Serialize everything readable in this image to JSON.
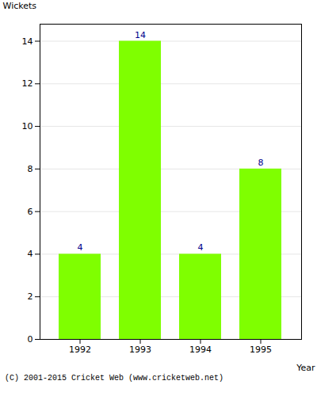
{
  "chart_data": {
    "type": "bar",
    "categories": [
      "1992",
      "1993",
      "1994",
      "1995"
    ],
    "values": [
      4,
      14,
      4,
      8
    ],
    "color": "#7FFF00",
    "xlabel": "Year",
    "ylabel": "Wickets",
    "ylim": [
      0,
      14.8
    ],
    "yticks": [
      0,
      2,
      4,
      6,
      8,
      10,
      12,
      14
    ],
    "grid": true,
    "data_labels": true,
    "caption": "(C) 2001-2015 Cricket Web (www.cricketweb.net)"
  }
}
